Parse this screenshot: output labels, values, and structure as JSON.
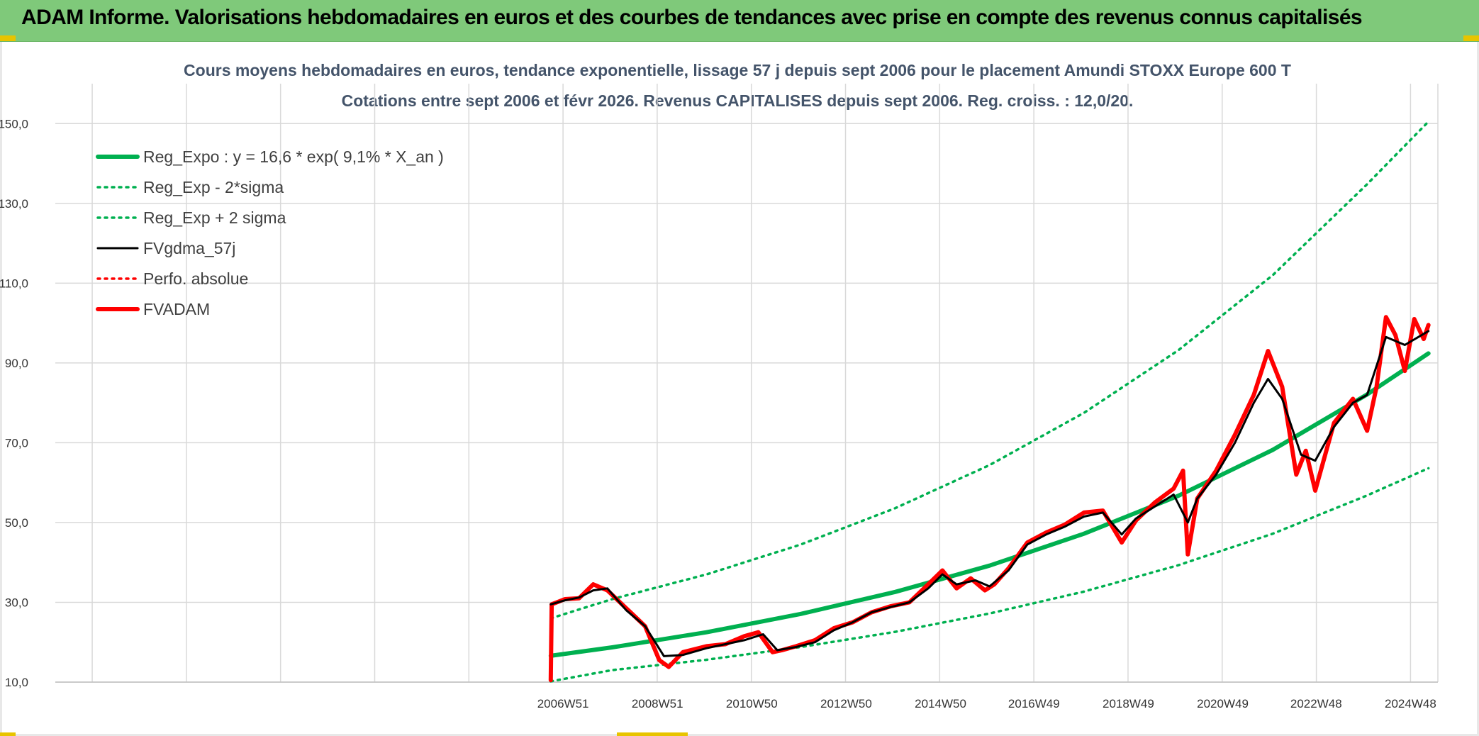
{
  "banner": {
    "title": "ADAM Informe. Valorisations hebdomadaires en euros et des courbes de tendances avec prise en compte des revenus connus capitalisés"
  },
  "colors": {
    "banner_bg": "#7fc97a",
    "trend_green": "#00b050",
    "fvgdma_black": "#000000",
    "fvadam_red": "#ff0000",
    "grid": "#d9d9d9",
    "title_text": "#44546a"
  },
  "chart_data": {
    "type": "line",
    "title": "Cours moyens hebdomadaires en euros, tendance exponentielle, lissage 57 j depuis sept 2006 pour le placement Amundi STOXX Europe 600 T",
    "subtitle": "Cotations entre sept 2006 et févr 2026. Revenus CAPITALISES depuis sept 2006. Reg. croiss. : 12,0/20.",
    "xlabel": "",
    "ylabel": "",
    "ylim": [
      10,
      160
    ],
    "y_ticks": [
      "10,0",
      "30,0",
      "50,0",
      "70,0",
      "90,0",
      "110,0",
      "130,0",
      "150,0"
    ],
    "y_tick_values": [
      10,
      30,
      50,
      70,
      90,
      110,
      130,
      150
    ],
    "x_ticks": [
      "2006W51",
      "2008W51",
      "2010W50",
      "2012W50",
      "2014W50",
      "2016W49",
      "2018W49",
      "2020W49",
      "2022W48",
      "2024W48"
    ],
    "x_tick_years": [
      2006.96,
      2008.96,
      2010.96,
      2012.96,
      2014.96,
      2016.94,
      2018.94,
      2020.94,
      2022.92,
      2024.92
    ],
    "xlim": [
      1996.2,
      2025.5
    ],
    "grid": true,
    "legend_position": "top-left",
    "series": [
      {
        "name": "Reg_Expo : y = 16,6 * exp( 9,1% *  X_an )",
        "style": "solid-thick",
        "color": "#00b050",
        "x": [
          2006.7,
          2008,
          2010,
          2012,
          2014,
          2016,
          2018,
          2020,
          2022,
          2024,
          2025.3
        ],
        "values": [
          16.6,
          18.7,
          22.5,
          27.1,
          32.6,
          39.2,
          47.2,
          56.7,
          68.2,
          82.1,
          92.4
        ]
      },
      {
        "name": "Reg_Exp - 2*sigma",
        "style": "dotted",
        "color": "#00b050",
        "x": [
          2006.7,
          2008,
          2010,
          2012,
          2014,
          2016,
          2018,
          2020,
          2022,
          2024,
          2025.3
        ],
        "values": [
          10.2,
          13.0,
          15.6,
          18.8,
          22.6,
          27.2,
          32.7,
          39.3,
          47.2,
          56.8,
          63.6
        ]
      },
      {
        "name": "Reg_Exp + 2 sigma",
        "style": "dotted",
        "color": "#00b050",
        "x": [
          2006.7,
          2008,
          2010,
          2012,
          2014,
          2016,
          2018,
          2020,
          2022,
          2024,
          2025.3
        ],
        "values": [
          26.0,
          30.8,
          37.0,
          44.5,
          53.6,
          64.4,
          77.5,
          93.2,
          112.0,
          134.8,
          150.5
        ]
      },
      {
        "name": "FVgdma_57j",
        "style": "solid",
        "color": "#000000",
        "x": [
          2006.7,
          2007.0,
          2007.3,
          2007.6,
          2007.9,
          2008.3,
          2008.7,
          2009.1,
          2009.5,
          2010.0,
          2010.4,
          2010.8,
          2011.2,
          2011.5,
          2011.9,
          2012.3,
          2012.7,
          2013.1,
          2013.5,
          2013.9,
          2014.3,
          2014.7,
          2015.0,
          2015.3,
          2015.7,
          2016.0,
          2016.4,
          2016.8,
          2017.2,
          2017.6,
          2018.0,
          2018.4,
          2018.8,
          2019.1,
          2019.5,
          2019.9,
          2020.2,
          2020.4,
          2020.8,
          2021.2,
          2021.6,
          2021.9,
          2022.2,
          2022.6,
          2022.9,
          2023.3,
          2023.7,
          2024.0,
          2024.4,
          2024.8,
          2025.3
        ],
        "values": [
          29.5,
          30.5,
          31.2,
          33.0,
          33.5,
          28.0,
          24.0,
          16.5,
          16.8,
          18.5,
          19.5,
          20.5,
          22.0,
          18.0,
          18.8,
          20.0,
          23.0,
          25.0,
          27.5,
          28.8,
          30.0,
          33.5,
          37.0,
          34.5,
          35.5,
          34.0,
          38.0,
          44.5,
          47.0,
          49.0,
          51.5,
          52.5,
          47.0,
          51.0,
          54.0,
          57.0,
          50.0,
          56.0,
          62.0,
          70.0,
          80.0,
          86.0,
          81.0,
          67.0,
          65.5,
          74.0,
          80.0,
          82.0,
          96.5,
          94.5,
          98.0
        ]
      },
      {
        "name": "Perfo. absolue",
        "style": "dotted",
        "color": "#ff0000",
        "x": [],
        "values": []
      },
      {
        "name": "FVADAM",
        "style": "solid-thick",
        "color": "#ff0000",
        "x": [
          2006.7,
          2006.72,
          2007.0,
          2007.3,
          2007.6,
          2007.9,
          2008.3,
          2008.7,
          2009.0,
          2009.2,
          2009.5,
          2010.0,
          2010.4,
          2010.8,
          2011.1,
          2011.4,
          2011.6,
          2011.9,
          2012.3,
          2012.7,
          2013.1,
          2013.5,
          2013.9,
          2014.3,
          2014.7,
          2015.0,
          2015.3,
          2015.6,
          2015.9,
          2016.1,
          2016.4,
          2016.8,
          2017.2,
          2017.6,
          2018.0,
          2018.4,
          2018.8,
          2019.1,
          2019.5,
          2019.9,
          2020.1,
          2020.2,
          2020.4,
          2020.8,
          2021.2,
          2021.6,
          2021.9,
          2022.2,
          2022.5,
          2022.7,
          2022.9,
          2023.3,
          2023.7,
          2024.0,
          2024.2,
          2024.4,
          2024.6,
          2024.8,
          2025.0,
          2025.2,
          2025.3
        ],
        "values": [
          10.5,
          29.5,
          30.8,
          31.0,
          34.5,
          33.0,
          28.5,
          24.0,
          15.5,
          13.8,
          17.5,
          19.0,
          19.5,
          21.5,
          22.5,
          17.5,
          18.0,
          19.0,
          20.5,
          23.5,
          25.0,
          27.5,
          29.0,
          30.0,
          34.5,
          38.0,
          33.5,
          36.0,
          33.0,
          34.5,
          38.5,
          45.0,
          47.5,
          49.5,
          52.5,
          53.0,
          45.0,
          50.5,
          55.0,
          58.5,
          63.0,
          42.0,
          56.0,
          63.0,
          72.0,
          82.0,
          93.0,
          84.0,
          62.0,
          68.0,
          58.0,
          75.0,
          81.0,
          73.0,
          84.0,
          101.5,
          97.0,
          88.0,
          101.0,
          96.0,
          99.5
        ]
      }
    ]
  }
}
